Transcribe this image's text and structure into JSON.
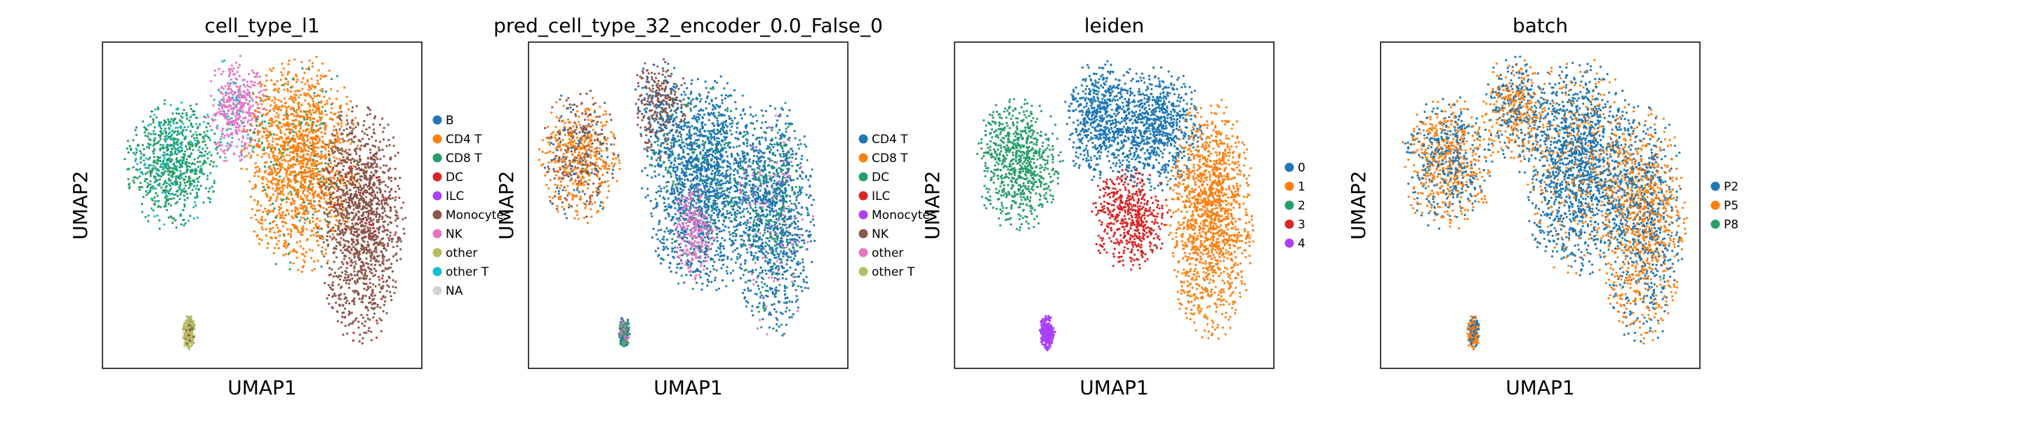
{
  "chart_data": [
    {
      "type": "scatter",
      "title": "cell_type_l1",
      "xlabel": "UMAP1",
      "ylabel": "UMAP2",
      "grid": false,
      "ticks": false,
      "legend_placement": "right",
      "legend": [
        {
          "label": "B",
          "color": "#1f77b4"
        },
        {
          "label": "CD4 T",
          "color": "#ff7f0e"
        },
        {
          "label": "CD8 T",
          "color": "#279e68"
        },
        {
          "label": "DC",
          "color": "#d62728"
        },
        {
          "label": "ILC",
          "color": "#aa40fc"
        },
        {
          "label": "Monocytes",
          "color": "#8c564b"
        },
        {
          "label": "NK",
          "color": "#e377c2"
        },
        {
          "label": "other",
          "color": "#b5bd61"
        },
        {
          "label": "other T",
          "color": "#17becf"
        },
        {
          "label": "NA",
          "color": "#d3d3d3"
        }
      ],
      "clusters": [
        {
          "cx": 0.22,
          "cy": 0.63,
          "rx": 0.15,
          "ry": 0.21,
          "mix": [
            [
              2,
              0.82
            ],
            [
              8,
              0.18
            ]
          ]
        },
        {
          "cx": 0.42,
          "cy": 0.79,
          "rx": 0.1,
          "ry": 0.17,
          "mix": [
            [
              6,
              0.9
            ],
            [
              8,
              0.1
            ]
          ]
        },
        {
          "cx": 0.62,
          "cy": 0.63,
          "rx": 0.19,
          "ry": 0.34,
          "mix": [
            [
              1,
              0.9
            ],
            [
              2,
              0.1
            ]
          ]
        },
        {
          "cx": 0.81,
          "cy": 0.45,
          "rx": 0.14,
          "ry": 0.38,
          "mix": [
            [
              5,
              0.97
            ],
            [
              3,
              0.03
            ]
          ]
        },
        {
          "cx": 0.27,
          "cy": 0.11,
          "rx": 0.02,
          "ry": 0.055,
          "mix": [
            [
              7,
              0.85
            ],
            [
              5,
              0.15
            ]
          ]
        }
      ]
    },
    {
      "type": "scatter",
      "title": "pred_cell_type_32_encoder_0.0_False_0",
      "xlabel": "UMAP1",
      "ylabel": "UMAP2",
      "grid": false,
      "ticks": false,
      "legend_placement": "right",
      "legend": [
        {
          "label": "CD4 T",
          "color": "#1f77b4"
        },
        {
          "label": "CD8 T",
          "color": "#ff7f0e"
        },
        {
          "label": "DC",
          "color": "#279e68"
        },
        {
          "label": "ILC",
          "color": "#d62728"
        },
        {
          "label": "Monocytes",
          "color": "#aa40fc"
        },
        {
          "label": "NK",
          "color": "#8c564b"
        },
        {
          "label": "other",
          "color": "#e377c2"
        },
        {
          "label": "other T",
          "color": "#b5bd61"
        }
      ],
      "clusters": [
        {
          "cx": 0.16,
          "cy": 0.65,
          "rx": 0.13,
          "ry": 0.21,
          "mix": [
            [
              1,
              0.58
            ],
            [
              5,
              0.32
            ],
            [
              0,
              0.1
            ]
          ]
        },
        {
          "cx": 0.41,
          "cy": 0.8,
          "rx": 0.09,
          "ry": 0.16,
          "mix": [
            [
              5,
              0.72
            ],
            [
              0,
              0.28
            ]
          ]
        },
        {
          "cx": 0.55,
          "cy": 0.57,
          "rx": 0.2,
          "ry": 0.34,
          "mix": [
            [
              0,
              0.88
            ],
            [
              2,
              0.12
            ]
          ]
        },
        {
          "cx": 0.52,
          "cy": 0.42,
          "rx": 0.07,
          "ry": 0.15,
          "mix": [
            [
              6,
              0.82
            ],
            [
              0,
              0.18
            ]
          ]
        },
        {
          "cx": 0.77,
          "cy": 0.46,
          "rx": 0.13,
          "ry": 0.37,
          "mix": [
            [
              0,
              0.68
            ],
            [
              2,
              0.22
            ],
            [
              6,
              0.1
            ]
          ]
        },
        {
          "cx": 0.3,
          "cy": 0.11,
          "rx": 0.018,
          "ry": 0.05,
          "mix": [
            [
              2,
              0.5
            ],
            [
              6,
              0.3
            ],
            [
              0,
              0.2
            ]
          ]
        }
      ]
    },
    {
      "type": "scatter",
      "title": "leiden",
      "xlabel": "UMAP1",
      "ylabel": "UMAP2",
      "grid": false,
      "ticks": false,
      "legend_placement": "right",
      "legend": [
        {
          "label": "0",
          "color": "#1f77b4"
        },
        {
          "label": "1",
          "color": "#ff7f0e"
        },
        {
          "label": "2",
          "color": "#279e68"
        },
        {
          "label": "3",
          "color": "#d62728"
        },
        {
          "label": "4",
          "color": "#aa40fc"
        }
      ],
      "clusters": [
        {
          "cx": 0.2,
          "cy": 0.63,
          "rx": 0.14,
          "ry": 0.21,
          "mix": [
            [
              2,
              1.0
            ]
          ]
        },
        {
          "cx": 0.45,
          "cy": 0.76,
          "rx": 0.11,
          "ry": 0.19,
          "mix": [
            [
              0,
              1.0
            ]
          ]
        },
        {
          "cx": 0.62,
          "cy": 0.74,
          "rx": 0.16,
          "ry": 0.2,
          "mix": [
            [
              0,
              1.0
            ]
          ]
        },
        {
          "cx": 0.55,
          "cy": 0.46,
          "rx": 0.13,
          "ry": 0.16,
          "mix": [
            [
              3,
              1.0
            ]
          ]
        },
        {
          "cx": 0.8,
          "cy": 0.46,
          "rx": 0.14,
          "ry": 0.38,
          "mix": [
            [
              1,
              1.0
            ]
          ]
        },
        {
          "cx": 0.29,
          "cy": 0.11,
          "rx": 0.025,
          "ry": 0.055,
          "mix": [
            [
              4,
              1.0
            ]
          ]
        }
      ]
    },
    {
      "type": "scatter",
      "title": "batch",
      "xlabel": "UMAP1",
      "ylabel": "UMAP2",
      "grid": false,
      "ticks": false,
      "legend_placement": "right",
      "legend": [
        {
          "label": "P2",
          "color": "#1f77b4"
        },
        {
          "label": "P5",
          "color": "#ff7f0e"
        },
        {
          "label": "P8",
          "color": "#279e68"
        }
      ],
      "clusters": [
        {
          "cx": 0.21,
          "cy": 0.63,
          "rx": 0.15,
          "ry": 0.21,
          "mix": [
            [
              1,
              0.55
            ],
            [
              0,
              0.45
            ]
          ]
        },
        {
          "cx": 0.42,
          "cy": 0.8,
          "rx": 0.1,
          "ry": 0.17,
          "mix": [
            [
              1,
              0.55
            ],
            [
              0,
              0.45
            ]
          ]
        },
        {
          "cx": 0.62,
          "cy": 0.62,
          "rx": 0.19,
          "ry": 0.34,
          "mix": [
            [
              0,
              0.78
            ],
            [
              1,
              0.22
            ]
          ]
        },
        {
          "cx": 0.82,
          "cy": 0.45,
          "rx": 0.14,
          "ry": 0.38,
          "mix": [
            [
              1,
              0.55
            ],
            [
              0,
              0.45
            ]
          ]
        },
        {
          "cx": 0.29,
          "cy": 0.11,
          "rx": 0.02,
          "ry": 0.055,
          "mix": [
            [
              1,
              0.65
            ],
            [
              0,
              0.35
            ]
          ]
        }
      ]
    }
  ]
}
